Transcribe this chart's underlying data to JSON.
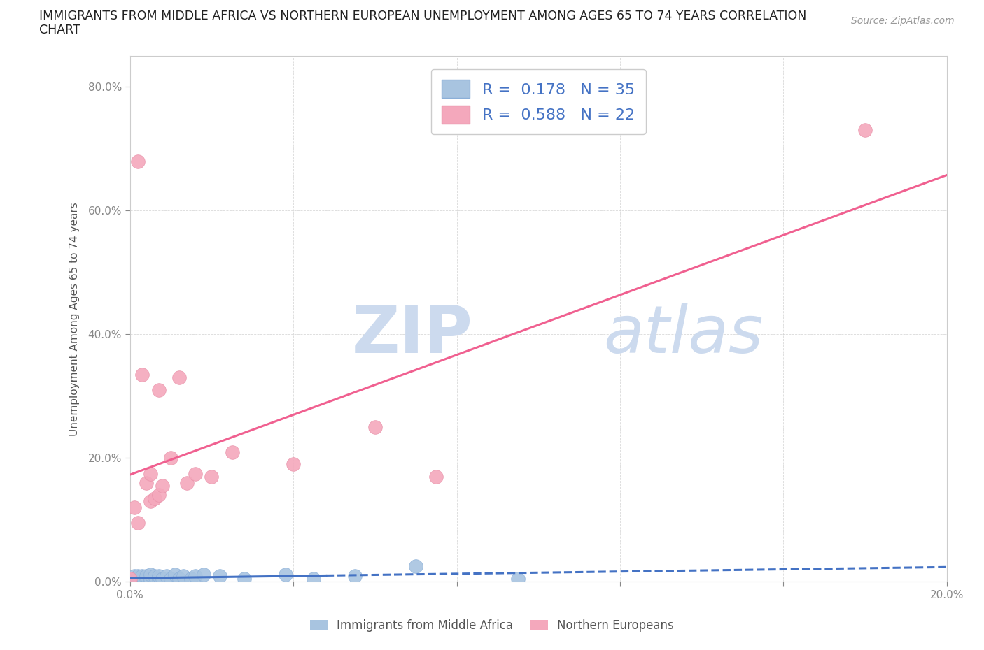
{
  "title_line1": "IMMIGRANTS FROM MIDDLE AFRICA VS NORTHERN EUROPEAN UNEMPLOYMENT AMONG AGES 65 TO 74 YEARS CORRELATION",
  "title_line2": "CHART",
  "source": "Source: ZipAtlas.com",
  "ylabel": "Unemployment Among Ages 65 to 74 years",
  "xlim": [
    0.0,
    0.2
  ],
  "ylim": [
    0.0,
    0.85
  ],
  "blue_color": "#a8c4e0",
  "pink_color": "#f4a8bc",
  "blue_line_color": "#4472c4",
  "pink_line_color": "#f06090",
  "R_blue": 0.178,
  "N_blue": 35,
  "R_pink": 0.588,
  "N_pink": 22,
  "watermark_zip": "ZIP",
  "watermark_atlas": "atlas",
  "watermark_color": "#ccdaee",
  "grid_color": "#d0d0d0",
  "background_color": "#ffffff",
  "blue_scatter_x": [
    0.0,
    0.0005,
    0.001,
    0.001,
    0.0015,
    0.002,
    0.002,
    0.002,
    0.003,
    0.003,
    0.003,
    0.004,
    0.004,
    0.005,
    0.005,
    0.005,
    0.006,
    0.007,
    0.007,
    0.008,
    0.009,
    0.01,
    0.011,
    0.012,
    0.013,
    0.015,
    0.016,
    0.018,
    0.022,
    0.028,
    0.038,
    0.045,
    0.055,
    0.07,
    0.095
  ],
  "blue_scatter_y": [
    0.001,
    0.001,
    0.002,
    0.01,
    0.001,
    0.001,
    0.005,
    0.01,
    0.001,
    0.005,
    0.01,
    0.005,
    0.01,
    0.001,
    0.005,
    0.012,
    0.01,
    0.005,
    0.01,
    0.005,
    0.01,
    0.005,
    0.012,
    0.005,
    0.01,
    0.005,
    0.01,
    0.012,
    0.01,
    0.005,
    0.012,
    0.005,
    0.01,
    0.025,
    0.005
  ],
  "pink_scatter_x": [
    0.0,
    0.001,
    0.002,
    0.002,
    0.003,
    0.004,
    0.005,
    0.005,
    0.006,
    0.007,
    0.007,
    0.008,
    0.01,
    0.012,
    0.014,
    0.016,
    0.02,
    0.025,
    0.04,
    0.06,
    0.075,
    0.18
  ],
  "pink_scatter_y": [
    0.005,
    0.12,
    0.095,
    0.68,
    0.335,
    0.16,
    0.13,
    0.175,
    0.135,
    0.14,
    0.31,
    0.155,
    0.2,
    0.33,
    0.16,
    0.175,
    0.17,
    0.21,
    0.19,
    0.25,
    0.17,
    0.73
  ]
}
